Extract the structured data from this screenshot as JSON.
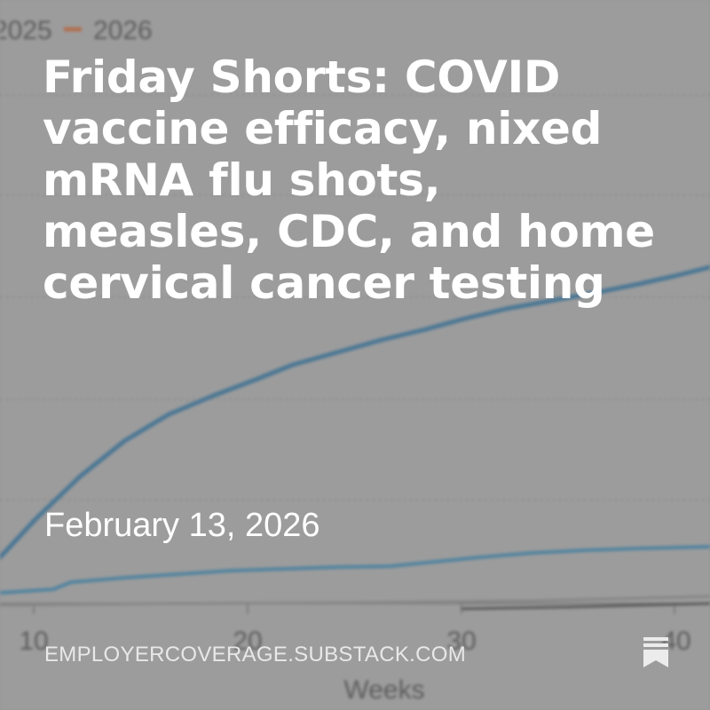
{
  "background_chart": {
    "legend": [
      {
        "name": "2025",
        "color": "#1f78b4"
      },
      {
        "name": "2026",
        "color": "#d9622b"
      }
    ],
    "x_ticks": [
      "10",
      "20",
      "30",
      "40"
    ],
    "xlabel": "Weeks"
  },
  "post": {
    "title": "Friday Shorts: COVID vaccine efficacy, nixed mRNA flu shots, measles, CDC, and home cervical cancer testing",
    "date": "February 13, 2026",
    "publication": "EMPLOYERCOVERAGE.SUBSTACK.COM"
  },
  "icons": {
    "save": "bookmark-icon"
  }
}
